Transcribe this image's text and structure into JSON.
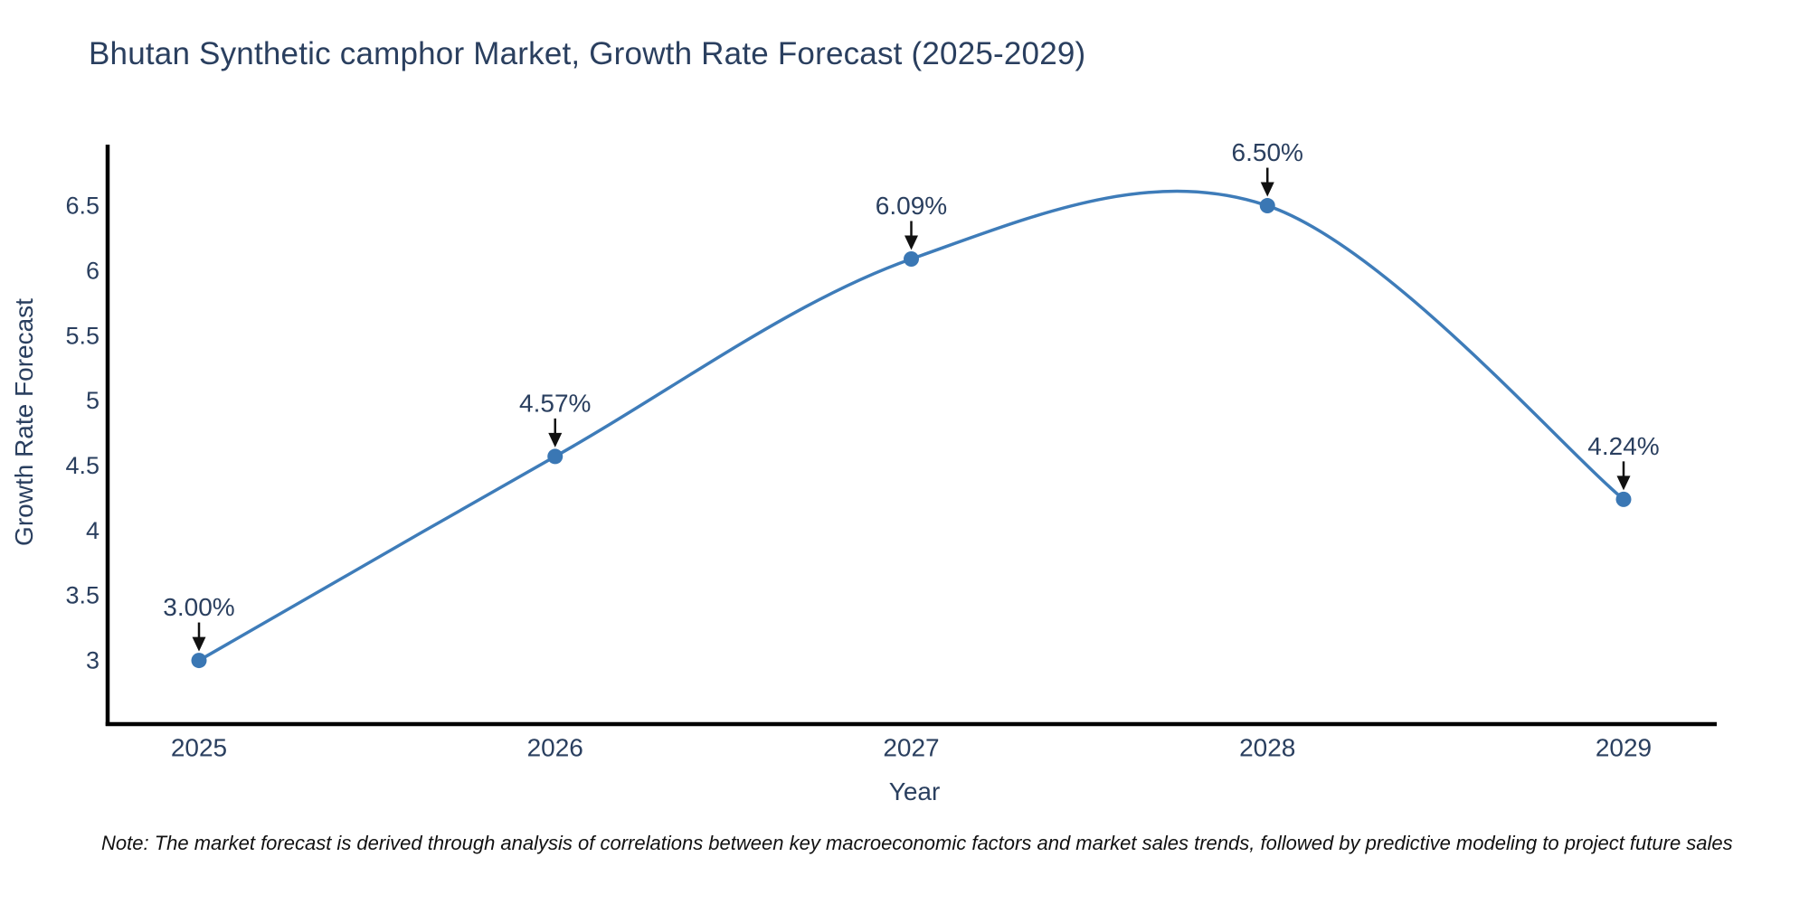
{
  "title": {
    "text": "Bhutan Synthetic camphor Market, Growth Rate Forecast (2025-2029)"
  },
  "note": {
    "text": "Note: The market forecast is derived through analysis of correlations between key macroeconomic factors and market sales trends, followed by predictive modeling to project future sales"
  },
  "chart_data": {
    "type": "line",
    "title": "Bhutan Synthetic camphor Market, Growth Rate Forecast (2025-2029)",
    "xlabel": "Year",
    "ylabel": "Growth Rate Forecast",
    "x": [
      2025,
      2026,
      2027,
      2028,
      2029
    ],
    "series": [
      {
        "name": "Growth Rate Forecast",
        "values": [
          3.0,
          4.57,
          6.09,
          6.5,
          4.24
        ]
      }
    ],
    "point_labels": [
      "3.00%",
      "4.57%",
      "6.09%",
      "6.50%",
      "4.24%"
    ],
    "xtick_labels": [
      "2025",
      "2026",
      "2027",
      "2028",
      "2029"
    ],
    "yticks": [
      3,
      3.5,
      4,
      4.5,
      5,
      5.5,
      6,
      6.5
    ],
    "ytick_labels": [
      "3",
      "3.5",
      "4",
      "4.5",
      "5",
      "5.5",
      "6",
      "6.5"
    ],
    "ylim": [
      2.51,
      6.97
    ],
    "grid": false,
    "legend": "none",
    "line_style": "spline-with-markers",
    "annotations": "value labels with down arrows above each point",
    "colors": {
      "line": "#3e7cb9",
      "marker": "#3a77b4",
      "axis": "#000000",
      "text": "#2a3f5f",
      "arrow": "#111111",
      "background": "#ffffff"
    }
  }
}
